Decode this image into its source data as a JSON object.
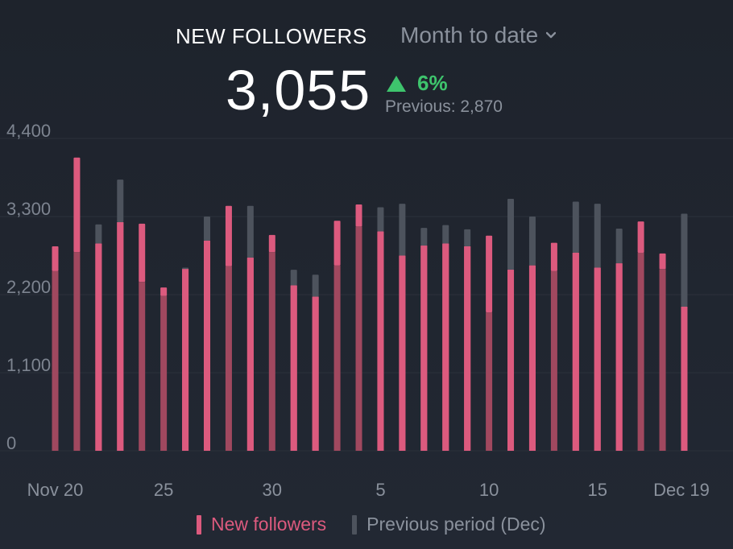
{
  "header": {
    "title": "NEW FOLLOWERS",
    "period_label": "Month to date",
    "total": "3,055",
    "delta": "6%",
    "previous": "Previous: 2,870"
  },
  "colors": {
    "current": "#dc5a7e",
    "previous": "#4d535d",
    "overlap": "#a0485f",
    "positive": "#3ec46d"
  },
  "icons": {
    "dropdown": "chevron-down-icon",
    "trend": "triangle-up-icon"
  },
  "legend": {
    "current": "New followers",
    "previous": "Previous period (Dec)"
  },
  "chart_data": {
    "type": "bar",
    "yticks": [
      "4,400",
      "3,300",
      "2,200",
      "1,100",
      "0"
    ],
    "ytick_values": [
      4400,
      3300,
      2200,
      1100,
      0
    ],
    "ylim": [
      0,
      4400
    ],
    "grid": true,
    "xtick_labels": [
      {
        "index": 0,
        "label": "Nov 20"
      },
      {
        "index": 5,
        "label": "25"
      },
      {
        "index": 10,
        "label": "30"
      },
      {
        "index": 15,
        "label": "5"
      },
      {
        "index": 20,
        "label": "10"
      },
      {
        "index": 25,
        "label": "15"
      },
      {
        "index": 29,
        "label": "Dec 19"
      }
    ],
    "series": [
      {
        "name": "New followers",
        "values": [
          2880,
          4130,
          2920,
          3220,
          3200,
          2300,
          2560,
          2960,
          3450,
          2720,
          3040,
          2330,
          2170,
          3240,
          3470,
          3090,
          2750,
          2890,
          2920,
          2880,
          3030,
          2550,
          2610,
          2930,
          2790,
          2580,
          2640,
          3230,
          2780,
          2030
        ]
      },
      {
        "name": "Previous period (Dec)",
        "values": [
          2530,
          2800,
          3190,
          3820,
          2380,
          2180,
          2580,
          3300,
          2600,
          3450,
          2800,
          2550,
          2480,
          2610,
          3160,
          3430,
          3480,
          3140,
          3180,
          3120,
          1950,
          3550,
          3300,
          2530,
          3510,
          3480,
          3130,
          2790,
          2560,
          3340
        ]
      }
    ]
  }
}
